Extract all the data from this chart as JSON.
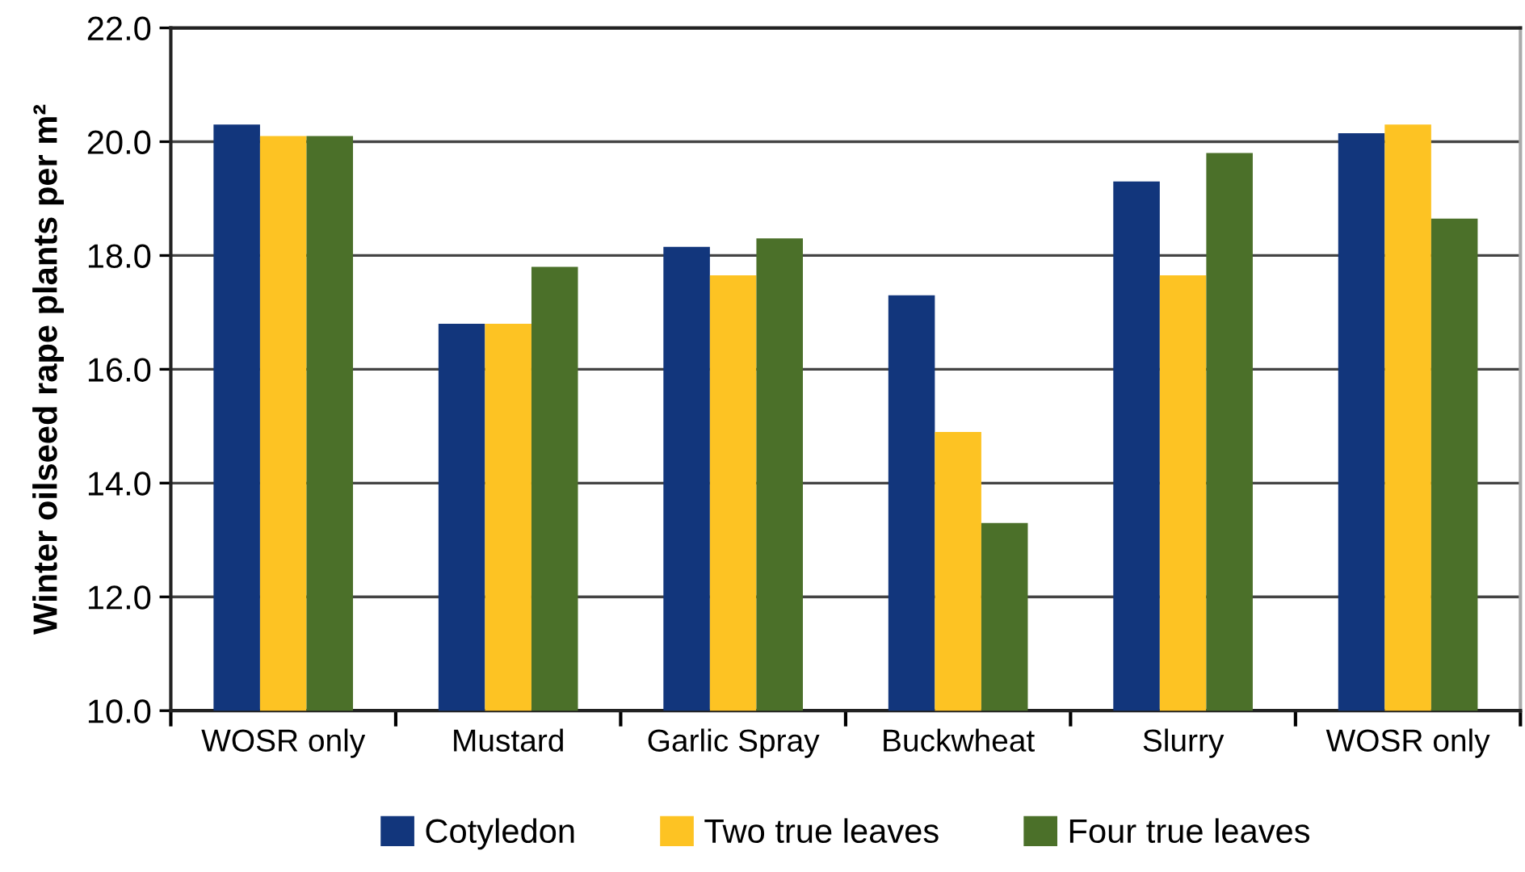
{
  "chart_data": {
    "type": "bar",
    "ylabel": "Winter oilseed rape plants per m²",
    "categories": [
      "WOSR only",
      "Mustard",
      "Garlic Spray",
      "Buckwheat",
      "Slurry",
      "WOSR only"
    ],
    "series": [
      {
        "name": "Cotyledon",
        "color": "#12367c",
        "values": [
          20.3,
          16.8,
          18.15,
          17.3,
          19.3,
          20.15
        ]
      },
      {
        "name": "Two true leaves",
        "color": "#fdc323",
        "values": [
          20.1,
          16.8,
          17.65,
          14.9,
          17.65,
          20.3
        ]
      },
      {
        "name": "Four true leaves",
        "color": "#4b7029",
        "values": [
          20.1,
          17.8,
          18.3,
          13.3,
          19.8,
          18.65
        ]
      }
    ],
    "ylim": [
      10,
      22
    ],
    "yticks": [
      {
        "value": 10,
        "label": "10.0"
      },
      {
        "value": 12,
        "label": "12.0"
      },
      {
        "value": 14,
        "label": "14.0"
      },
      {
        "value": 16,
        "label": "16.0"
      },
      {
        "value": 18,
        "label": "18.0"
      },
      {
        "value": 20,
        "label": "20.0"
      },
      {
        "value": 22,
        "label": "22.0"
      }
    ],
    "grid": "y",
    "legend": "bottom"
  }
}
